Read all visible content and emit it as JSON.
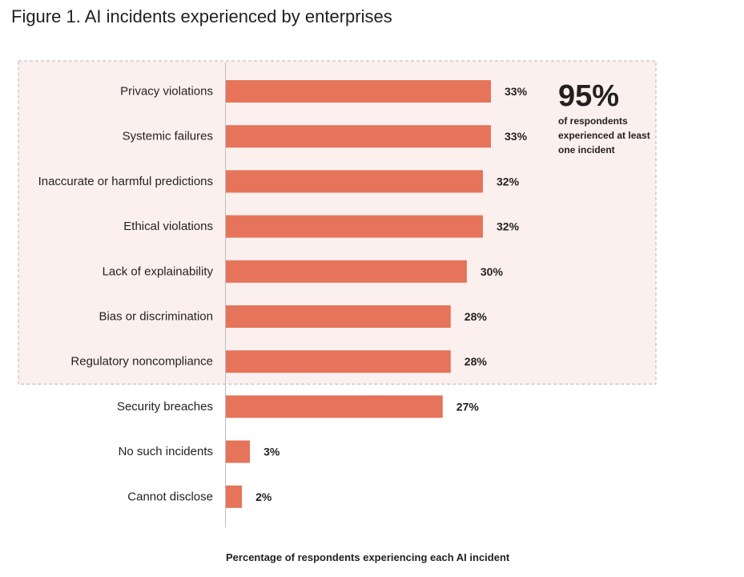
{
  "figure_title": "Figure 1. AI incidents experienced by enterprises",
  "callout": {
    "value": "95%",
    "text": "of respondents experienced at least one incident"
  },
  "colors": {
    "bar": "#e5745a",
    "highlight_fill": "#fbf0ee",
    "highlight_border": "#b8b3b1",
    "axis": "#bdbdbd"
  },
  "chart_data": {
    "type": "bar",
    "orientation": "horizontal",
    "title": "Figure 1. AI incidents experienced by enterprises",
    "xlabel": "Percentage of respondents experiencing each AI incident",
    "ylabel": "",
    "xlim": [
      0,
      33
    ],
    "grid": false,
    "categories": [
      "Privacy violations",
      "Systemic failures",
      "Inaccurate or harmful predictions",
      "Ethical violations",
      "Lack of explainability",
      "Bias or discrimination",
      "Regulatory noncompliance",
      "Security breaches",
      "No such incidents",
      "Cannot disclose"
    ],
    "values": [
      33,
      33,
      32,
      32,
      30,
      28,
      28,
      27,
      3,
      2
    ],
    "value_labels": [
      "33%",
      "33%",
      "32%",
      "32%",
      "30%",
      "28%",
      "28%",
      "27%",
      "3%",
      "2%"
    ],
    "highlighted_categories": [
      "Privacy violations",
      "Systemic failures",
      "Inaccurate or harmful predictions",
      "Ethical violations",
      "Lack of explainability",
      "Bias or discrimination",
      "Regulatory noncompliance"
    ]
  }
}
